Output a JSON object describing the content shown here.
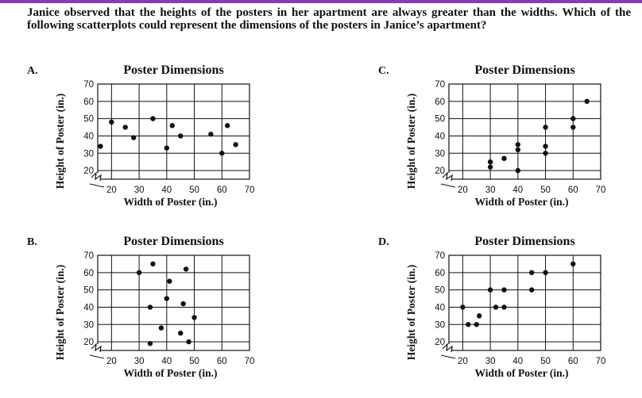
{
  "question": "Janice observed that the heights of the posters in her apartment are always greater than the widths. Which of the following scatterplots could represent the dimensions of the posters in Janice’s apartment?",
  "colors": {
    "ink": "#111111",
    "accent_line": "#8a3ab8"
  },
  "chart_data": [
    {
      "option": "A.",
      "type": "scatter",
      "title": "Poster Dimensions",
      "xlabel": "Width of Poster (in.)",
      "ylabel": "Height of Poster (in.)",
      "xticks": [
        20,
        30,
        40,
        50,
        60,
        70
      ],
      "yticks": [
        20,
        30,
        40,
        50,
        60,
        70
      ],
      "xlim": [
        15,
        70
      ],
      "ylim": [
        15,
        70
      ],
      "axis_break": true,
      "grid": true,
      "points": [
        [
          16,
          34
        ],
        [
          20,
          48
        ],
        [
          25,
          45
        ],
        [
          28,
          39
        ],
        [
          35,
          50
        ],
        [
          40,
          33
        ],
        [
          42,
          46
        ],
        [
          45,
          40
        ],
        [
          56,
          41
        ],
        [
          60,
          30
        ],
        [
          62,
          46
        ],
        [
          65,
          35
        ]
      ]
    },
    {
      "option": "C.",
      "type": "scatter",
      "title": "Poster Dimensions",
      "xlabel": "Width of Poster (in.)",
      "ylabel": "Height of Poster (in.)",
      "xticks": [
        20,
        30,
        40,
        50,
        60,
        70
      ],
      "yticks": [
        20,
        30,
        40,
        50,
        60,
        70
      ],
      "xlim": [
        15,
        70
      ],
      "ylim": [
        15,
        70
      ],
      "axis_break": true,
      "grid": true,
      "points": [
        [
          30,
          22
        ],
        [
          30,
          25
        ],
        [
          35,
          27
        ],
        [
          40,
          20
        ],
        [
          40,
          32
        ],
        [
          40,
          35
        ],
        [
          50,
          30
        ],
        [
          50,
          34
        ],
        [
          50,
          45
        ],
        [
          60,
          45
        ],
        [
          60,
          50
        ],
        [
          65,
          60
        ]
      ]
    },
    {
      "option": "B.",
      "type": "scatter",
      "title": "Poster Dimensions",
      "xlabel": "Width of Poster (in.)",
      "ylabel": "Height of Poster (in.)",
      "xticks": [
        20,
        30,
        40,
        50,
        60,
        70
      ],
      "yticks": [
        20,
        30,
        40,
        50,
        60,
        70
      ],
      "xlim": [
        15,
        70
      ],
      "ylim": [
        15,
        70
      ],
      "axis_break": true,
      "grid": true,
      "points": [
        [
          30,
          60
        ],
        [
          34,
          19
        ],
        [
          34,
          40
        ],
        [
          35,
          65
        ],
        [
          38,
          28
        ],
        [
          40,
          45
        ],
        [
          41,
          55
        ],
        [
          45,
          25
        ],
        [
          46,
          42
        ],
        [
          47,
          62
        ],
        [
          48,
          20
        ],
        [
          50,
          34
        ]
      ]
    },
    {
      "option": "D.",
      "type": "scatter",
      "title": "Poster Dimensions",
      "xlabel": "Width of Poster (in.)",
      "ylabel": "Height of Poster (in.)",
      "xticks": [
        20,
        30,
        40,
        50,
        60,
        70
      ],
      "yticks": [
        20,
        30,
        40,
        50,
        60,
        70
      ],
      "xlim": [
        15,
        70
      ],
      "ylim": [
        15,
        70
      ],
      "axis_break": true,
      "grid": true,
      "points": [
        [
          20,
          40
        ],
        [
          22,
          30
        ],
        [
          25,
          30
        ],
        [
          26,
          35
        ],
        [
          30,
          50
        ],
        [
          32,
          40
        ],
        [
          35,
          40
        ],
        [
          35,
          50
        ],
        [
          45,
          50
        ],
        [
          45,
          60
        ],
        [
          50,
          60
        ],
        [
          60,
          65
        ]
      ]
    }
  ]
}
